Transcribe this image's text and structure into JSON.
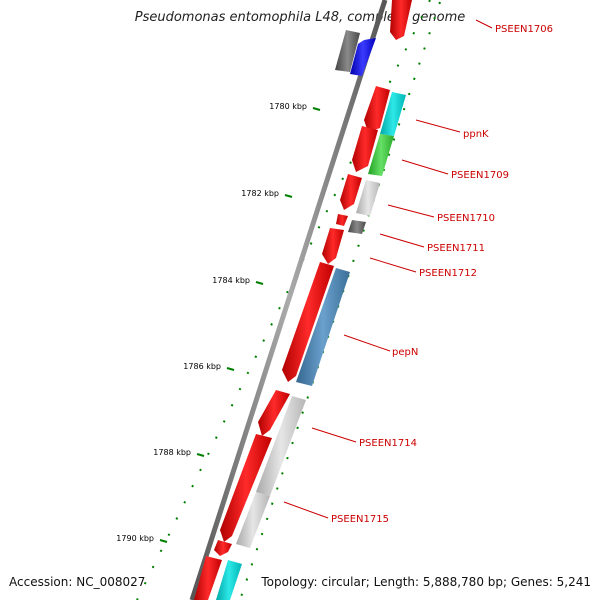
{
  "header": {
    "title": "Pseudomonas entomophila L48, complete genome"
  },
  "footer": {
    "accession": "Accession: NC_008027",
    "summary": "Topology: circular; Length: 5,888,780 bp; Genes: 5,241"
  },
  "scale": {
    "ticks": [
      "1780 kbp",
      "1782 kbp",
      "1784 kbp",
      "1786 kbp",
      "1788 kbp",
      "1790 kbp"
    ]
  },
  "genes": [
    {
      "label": "PSEEN1706",
      "color": "#ff0000"
    },
    {
      "label": "ppnK",
      "color": "#00cccc"
    },
    {
      "label": "PSEEN1709",
      "color": "#33cc33"
    },
    {
      "label": "PSEEN1710",
      "color": "#c0c0c0"
    },
    {
      "label": "PSEEN1711",
      "color": "#666666"
    },
    {
      "label": "PSEEN1712",
      "color": "#ff0000"
    },
    {
      "label": "pepN",
      "color": "#4682b4"
    },
    {
      "label": "PSEEN1714",
      "color": "#c0c0c0"
    },
    {
      "label": "PSEEN1715",
      "color": "#c0c0c0"
    }
  ],
  "colors": {
    "label_red": "#cc0000",
    "tick_green": "#008000",
    "backbone": "#777777"
  }
}
